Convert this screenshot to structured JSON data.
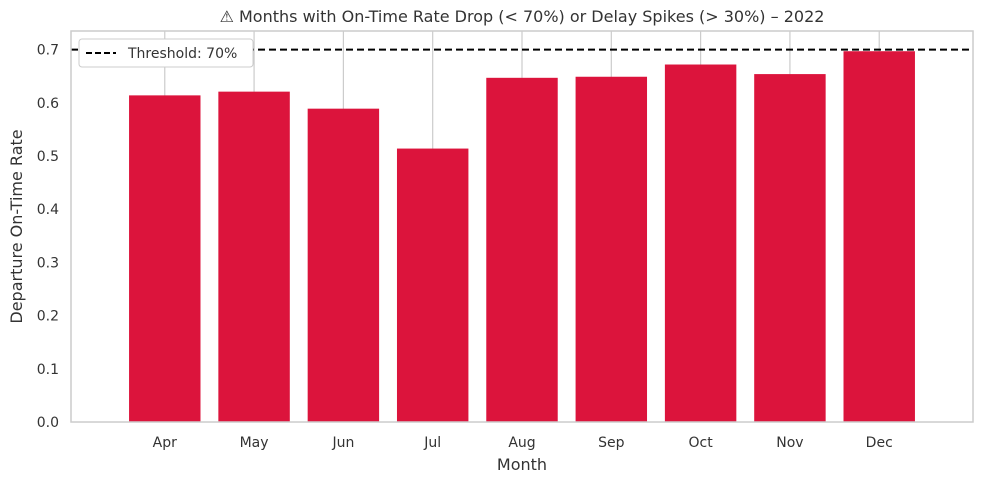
{
  "chart_data": {
    "type": "bar",
    "title": "⚠ Months with On-Time Rate Drop (< 70%) or Delay Spikes (> 30%) – 2022",
    "xlabel": "Month",
    "ylabel": "Departure On-Time Rate",
    "categories": [
      "Apr",
      "May",
      "Jun",
      "Jul",
      "Aug",
      "Sep",
      "Oct",
      "Nov",
      "Dec"
    ],
    "values": [
      0.614,
      0.621,
      0.589,
      0.514,
      0.647,
      0.649,
      0.672,
      0.654,
      0.697
    ],
    "ylim": [
      0,
      0.735
    ],
    "yticks": [
      0.0,
      0.1,
      0.2,
      0.3,
      0.4,
      0.5,
      0.6,
      0.7
    ],
    "ytick_labels": [
      "0.0",
      "0.1",
      "0.2",
      "0.3",
      "0.4",
      "0.5",
      "0.6",
      "0.7"
    ],
    "grid": "vertical",
    "threshold": {
      "value": 0.7,
      "label": "Threshold: 70%",
      "style": "dashed",
      "color": "#000000"
    },
    "legend": {
      "placement": "top-left",
      "entries": [
        "Threshold: 70%"
      ]
    },
    "bar_color": "#dc143c",
    "grid_color": "#cccccc",
    "frame_color": "#cccccc"
  }
}
